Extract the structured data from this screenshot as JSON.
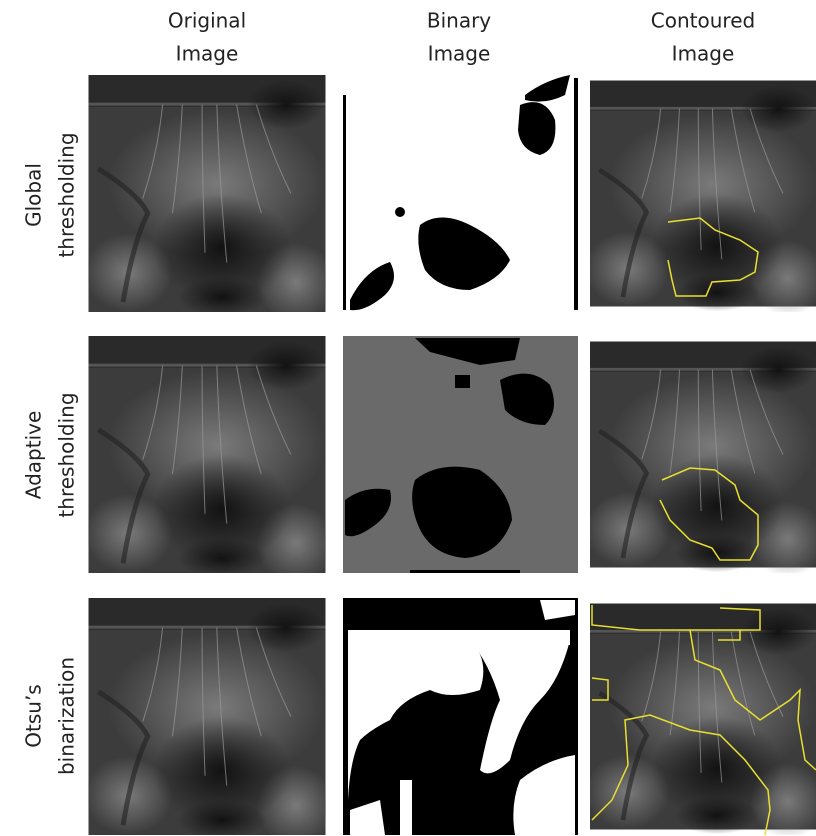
{
  "columns": [
    {
      "lines": [
        "Original",
        "Image"
      ]
    },
    {
      "lines": [
        "Binary",
        "Image"
      ]
    },
    {
      "lines": [
        "Contoured",
        "Image"
      ]
    }
  ],
  "rows": [
    {
      "lines": [
        "Global",
        "thresholding"
      ]
    },
    {
      "lines": [
        "Adaptive",
        "thresholding"
      ]
    },
    {
      "lines": [
        "Otsu’s",
        "binarization"
      ]
    }
  ]
}
